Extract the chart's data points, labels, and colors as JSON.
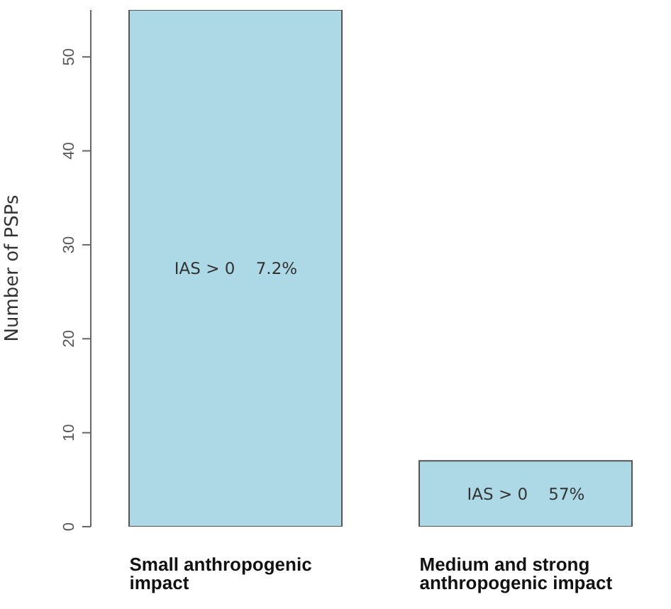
{
  "chart_data": {
    "type": "bar",
    "ylabel": "Number of PSPs",
    "categories": [
      "Small anthropogenic impact",
      "Medium and strong anthropogenic impact"
    ],
    "values": [
      55,
      7
    ],
    "color": "#add8e6",
    "ylim": [
      0,
      55
    ],
    "yticks": [
      0,
      10,
      20,
      30,
      40,
      50
    ],
    "grid": false,
    "legend": false,
    "annotations": [
      "IAS > 0    7.2%",
      "IAS > 0    57%"
    ]
  }
}
